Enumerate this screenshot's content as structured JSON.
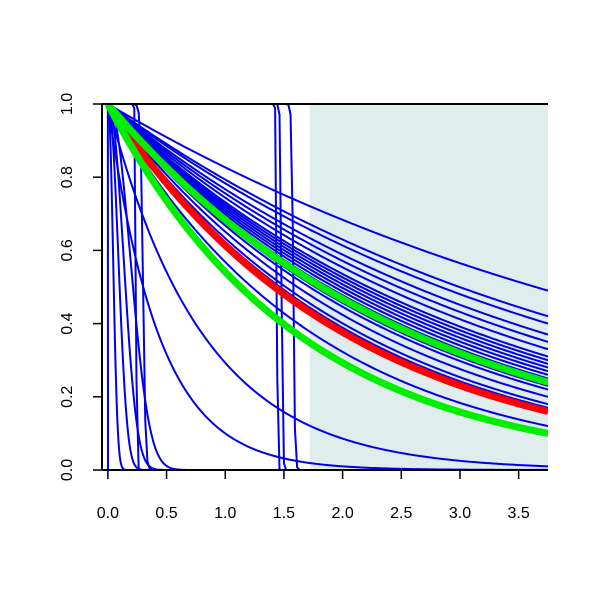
{
  "chart_data": {
    "type": "line",
    "title": "",
    "xlabel": "",
    "ylabel": "",
    "xlim": [
      -0.05,
      3.75
    ],
    "ylim": [
      0.0,
      1.0
    ],
    "x_ticks": [
      "0.0",
      "0.5",
      "1.0",
      "1.5",
      "2.0",
      "2.5",
      "3.0",
      "3.5"
    ],
    "y_ticks": [
      "0.0",
      "0.2",
      "0.4",
      "0.6",
      "0.8",
      "1.0"
    ],
    "grid": false,
    "legend": "none",
    "shaded_region": {
      "x_from": 1.72,
      "x_to": 3.75,
      "color": "#e0eded"
    },
    "colors": {
      "blue": "#0000ee",
      "red": "#ff0000",
      "green": "#00ee00",
      "axis": "#000000"
    },
    "series": [
      {
        "color": "blue",
        "kind": "exp",
        "endpoints": [
          [
            3.75,
            0.49
          ]
        ]
      },
      {
        "color": "blue",
        "kind": "exp",
        "endpoints": [
          [
            3.75,
            0.42
          ]
        ]
      },
      {
        "color": "blue",
        "kind": "exp",
        "endpoints": [
          [
            3.75,
            0.4
          ]
        ]
      },
      {
        "color": "blue",
        "kind": "exp",
        "endpoints": [
          [
            3.75,
            0.37
          ]
        ]
      },
      {
        "color": "blue",
        "kind": "exp",
        "endpoints": [
          [
            3.75,
            0.35
          ]
        ]
      },
      {
        "color": "blue",
        "kind": "exp",
        "endpoints": [
          [
            3.75,
            0.33
          ]
        ]
      },
      {
        "color": "blue",
        "kind": "exp",
        "endpoints": [
          [
            3.75,
            0.31
          ]
        ]
      },
      {
        "color": "blue",
        "kind": "exp",
        "endpoints": [
          [
            3.75,
            0.3
          ]
        ]
      },
      {
        "color": "blue",
        "kind": "exp",
        "endpoints": [
          [
            3.75,
            0.29
          ]
        ]
      },
      {
        "color": "blue",
        "kind": "exp",
        "endpoints": [
          [
            3.75,
            0.28
          ]
        ]
      },
      {
        "color": "blue",
        "kind": "exp",
        "endpoints": [
          [
            3.75,
            0.27
          ]
        ]
      },
      {
        "color": "blue",
        "kind": "exp",
        "endpoints": [
          [
            3.75,
            0.26
          ]
        ]
      },
      {
        "color": "blue",
        "kind": "exp",
        "endpoints": [
          [
            3.75,
            0.25
          ]
        ]
      },
      {
        "color": "blue",
        "kind": "exp",
        "endpoints": [
          [
            3.75,
            0.24
          ]
        ]
      },
      {
        "color": "blue",
        "kind": "exp",
        "endpoints": [
          [
            3.75,
            0.23
          ]
        ]
      },
      {
        "color": "blue",
        "kind": "exp",
        "endpoints": [
          [
            3.75,
            0.22
          ]
        ]
      },
      {
        "color": "blue",
        "kind": "exp",
        "endpoints": [
          [
            3.75,
            0.2
          ]
        ]
      },
      {
        "color": "blue",
        "kind": "exp",
        "endpoints": [
          [
            3.75,
            0.18
          ]
        ]
      },
      {
        "color": "blue",
        "kind": "exp",
        "endpoints": [
          [
            3.75,
            0.17
          ]
        ]
      },
      {
        "color": "blue",
        "kind": "exp",
        "endpoints": [
          [
            3.75,
            0.12
          ]
        ]
      },
      {
        "color": "blue",
        "kind": "exp",
        "endpoints": [
          [
            1.0,
            0.43
          ],
          [
            2.0,
            0.18
          ],
          [
            3.75,
            0.01
          ]
        ]
      },
      {
        "color": "blue",
        "kind": "exp",
        "endpoints": [
          [
            0.5,
            0.31
          ],
          [
            1.0,
            0.1
          ],
          [
            2.0,
            0.01
          ]
        ]
      },
      {
        "color": "blue",
        "kind": "steep",
        "endpoints": [
          [
            0.2,
            0.55
          ],
          [
            0.5,
            0.02
          ]
        ]
      },
      {
        "color": "blue",
        "kind": "steep",
        "endpoints": [
          [
            0.15,
            0.5
          ],
          [
            0.45,
            0.03
          ]
        ]
      },
      {
        "color": "blue",
        "kind": "steep",
        "endpoints": [
          [
            0.1,
            0.5
          ],
          [
            0.4,
            0.02
          ]
        ]
      },
      {
        "color": "blue",
        "kind": "steep",
        "endpoints": [
          [
            0.05,
            0.5
          ],
          [
            0.3,
            0.02
          ]
        ]
      },
      {
        "color": "blue",
        "kind": "steep",
        "endpoints": [
          [
            0.0,
            0.4
          ],
          [
            0.05,
            0.0
          ]
        ]
      },
      {
        "color": "blue",
        "kind": "step",
        "drop_at": 0.24,
        "width": 0.02
      },
      {
        "color": "blue",
        "kind": "step",
        "drop_at": 0.3,
        "width": 0.06
      },
      {
        "color": "blue",
        "kind": "step",
        "drop_at": 1.44,
        "width": 0.02
      },
      {
        "color": "blue",
        "kind": "step",
        "drop_at": 1.48,
        "width": 0.03
      },
      {
        "color": "blue",
        "kind": "step",
        "drop_at": 1.58,
        "width": 0.04
      },
      {
        "color": "red",
        "kind": "exp",
        "emphasis": true,
        "endpoints": [
          [
            3.75,
            0.16
          ]
        ]
      },
      {
        "color": "green",
        "kind": "exp",
        "emphasis": true,
        "endpoints": [
          [
            3.75,
            0.24
          ]
        ]
      },
      {
        "color": "green",
        "kind": "exp",
        "emphasis": true,
        "endpoints": [
          [
            3.75,
            0.1
          ]
        ]
      }
    ]
  }
}
